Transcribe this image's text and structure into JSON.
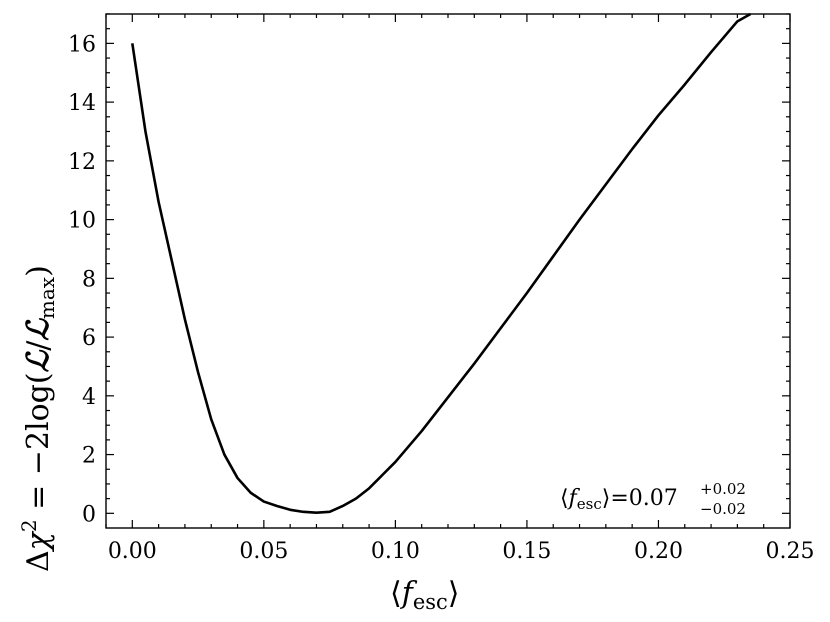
{
  "chart_data": {
    "type": "line",
    "xlabel": "⟨f_esc⟩",
    "ylabel": "Δχ² = −2log(ℒ/ℒ_max)",
    "annotation": "⟨f_esc⟩=0.07 +0.02 −0.02",
    "xlim": [
      -0.01,
      0.25
    ],
    "ylim": [
      -0.5,
      17
    ],
    "xticks": [
      0.0,
      0.05,
      0.1,
      0.15,
      0.2,
      0.25
    ],
    "xtick_labels": [
      "0.00",
      "0.05",
      "0.10",
      "0.15",
      "0.20",
      "0.25"
    ],
    "yticks": [
      0,
      2,
      4,
      6,
      8,
      10,
      12,
      14,
      16
    ],
    "ytick_labels": [
      "0",
      "2",
      "4",
      "6",
      "8",
      "10",
      "12",
      "14",
      "16"
    ],
    "grid": false,
    "series": [
      {
        "color": "#000000",
        "x": [
          0.0,
          0.005,
          0.01,
          0.015,
          0.02,
          0.025,
          0.03,
          0.035,
          0.04,
          0.045,
          0.05,
          0.055,
          0.06,
          0.065,
          0.07,
          0.075,
          0.08,
          0.085,
          0.09,
          0.095,
          0.1,
          0.11,
          0.12,
          0.13,
          0.14,
          0.15,
          0.16,
          0.17,
          0.18,
          0.19,
          0.2,
          0.21,
          0.22,
          0.23,
          0.235
        ],
        "y": [
          16.0,
          13.0,
          10.6,
          8.6,
          6.6,
          4.8,
          3.2,
          2.0,
          1.2,
          0.7,
          0.4,
          0.25,
          0.12,
          0.05,
          0.02,
          0.05,
          0.25,
          0.5,
          0.85,
          1.3,
          1.75,
          2.8,
          3.95,
          5.1,
          6.3,
          7.5,
          8.75,
          10.0,
          11.2,
          12.4,
          13.55,
          14.6,
          15.7,
          16.75,
          17.0
        ]
      }
    ]
  }
}
